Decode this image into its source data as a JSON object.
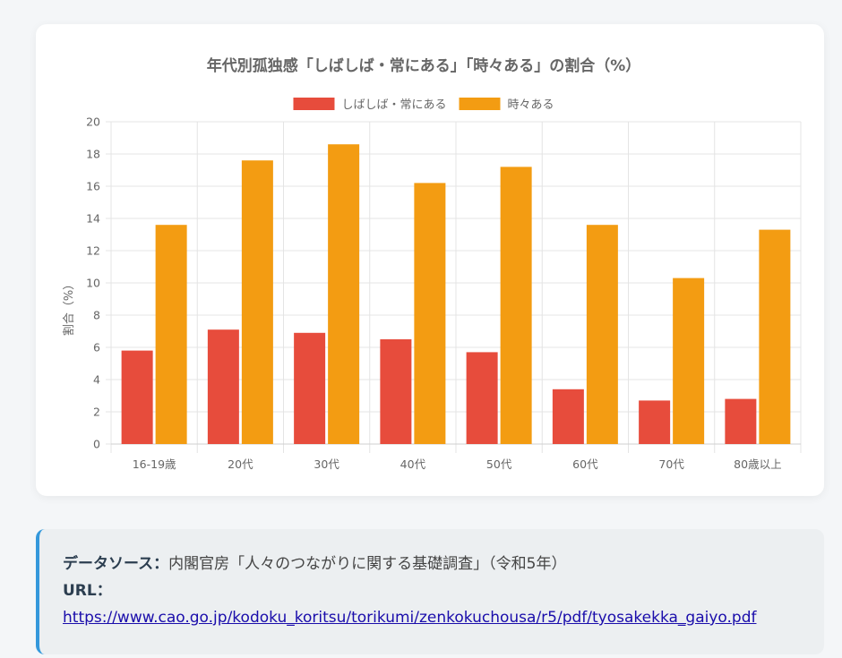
{
  "chart_data": {
    "type": "bar",
    "title": "年代別孤独感「しばしば・常にある」「時々ある」の割合（%）",
    "categories": [
      "16-19歳",
      "20代",
      "30代",
      "40代",
      "50代",
      "60代",
      "70代",
      "80歳以上"
    ],
    "series": [
      {
        "name": "しばしば・常にある",
        "color": "#e74c3c",
        "values": [
          5.8,
          7.1,
          6.9,
          6.5,
          5.7,
          3.4,
          2.7,
          2.8
        ]
      },
      {
        "name": "時々ある",
        "color": "#f39c12",
        "values": [
          13.6,
          17.6,
          18.6,
          16.2,
          17.2,
          13.6,
          10.3,
          13.3
        ]
      }
    ],
    "ylabel": "割合（%）",
    "ylim": [
      0,
      20
    ],
    "yticks": [
      0,
      2,
      4,
      6,
      8,
      10,
      12,
      14,
      16,
      18,
      20
    ],
    "grid": true,
    "legend": "top"
  },
  "source": {
    "label": "データソース：",
    "text": "内閣官房「人々のつながりに関する基礎調査」（令和5年）",
    "url_label": "URL：",
    "url": "https://www.cao.go.jp/kodoku_koritsu/torikumi/zenkokuchousa/r5/pdf/tyosakekka_gaiyo.pdf"
  }
}
